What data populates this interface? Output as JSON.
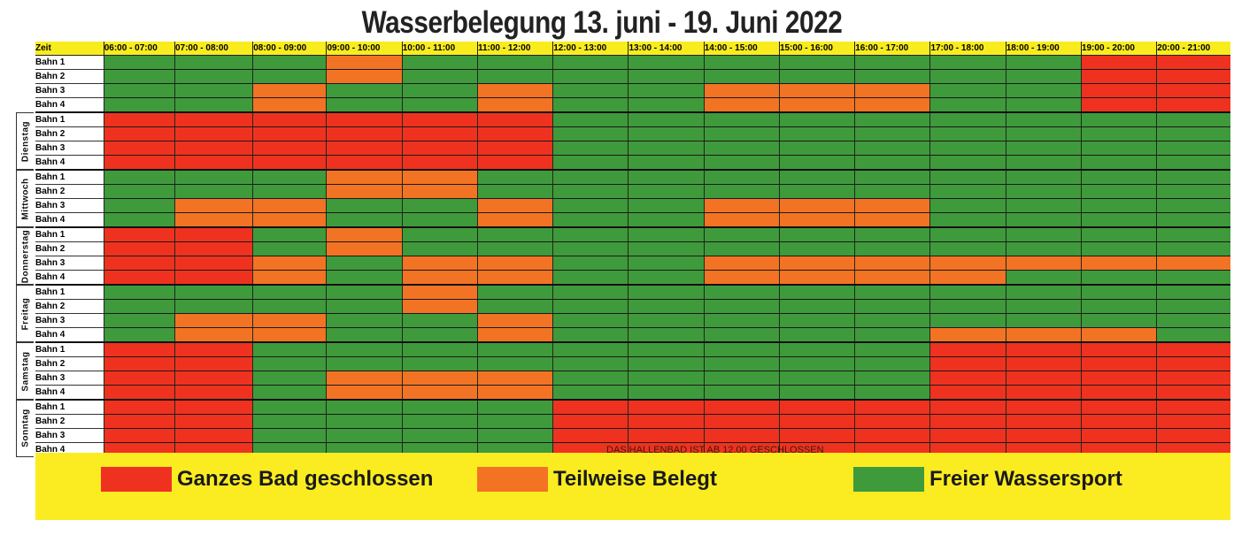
{
  "title": "Wasserbelegung 13. juni - 19. Juni 2022",
  "header": {
    "first_col": "Zeit",
    "slots": [
      "06:00 - 07:00",
      "07:00 - 08:00",
      "08:00 - 09:00",
      "09:00 - 10:00",
      "10:00 - 11:00",
      "11:00 - 12:00",
      "12:00 - 13:00",
      "13:00 - 14:00",
      "14:00 - 15:00",
      "15:00 - 16:00",
      "16:00 - 17:00",
      "17:00 - 18:00",
      "18:00 - 19:00",
      "19:00 - 20:00",
      "20:00 - 21:00"
    ]
  },
  "colors": {
    "R": "#ef3220",
    "O": "#f37324",
    "G": "#3f9a3c",
    "yellow": "#f8ec1e"
  },
  "days": [
    {
      "label": "",
      "lanes": [
        {
          "name": "Bahn 1",
          "cells": [
            "G",
            "G",
            "G",
            "O",
            "G",
            "G",
            "G",
            "G",
            "G",
            "G",
            "G",
            "G",
            "G",
            "R",
            "R"
          ]
        },
        {
          "name": "Bahn 2",
          "cells": [
            "G",
            "G",
            "G",
            "O",
            "G",
            "G",
            "G",
            "G",
            "G",
            "G",
            "G",
            "G",
            "G",
            "R",
            "R"
          ]
        },
        {
          "name": "Bahn 3",
          "cells": [
            "G",
            "G",
            "O",
            "G",
            "G",
            "O",
            "G",
            "G",
            "O",
            "O",
            "O",
            "G",
            "G",
            "R",
            "R"
          ]
        },
        {
          "name": "Bahn 4",
          "cells": [
            "G",
            "G",
            "O",
            "G",
            "G",
            "O",
            "G",
            "G",
            "O",
            "O",
            "O",
            "G",
            "G",
            "R",
            "R"
          ]
        }
      ]
    },
    {
      "label": "Dienstag",
      "lanes": [
        {
          "name": "Bahn 1",
          "cells": [
            "R",
            "R",
            "R",
            "R",
            "R",
            "R",
            "G",
            "G",
            "G",
            "G",
            "G",
            "G",
            "G",
            "G",
            "G"
          ]
        },
        {
          "name": "Bahn 2",
          "cells": [
            "R",
            "R",
            "R",
            "R",
            "R",
            "R",
            "G",
            "G",
            "G",
            "G",
            "G",
            "G",
            "G",
            "G",
            "G"
          ]
        },
        {
          "name": "Bahn 3",
          "cells": [
            "R",
            "R",
            "R",
            "R",
            "R",
            "R",
            "G",
            "G",
            "G",
            "G",
            "G",
            "G",
            "G",
            "G",
            "G"
          ]
        },
        {
          "name": "Bahn 4",
          "cells": [
            "R",
            "R",
            "R",
            "R",
            "R",
            "R",
            "G",
            "G",
            "G",
            "G",
            "G",
            "G",
            "G",
            "G",
            "G"
          ]
        }
      ]
    },
    {
      "label": "Mittwoch",
      "lanes": [
        {
          "name": "Bahn 1",
          "cells": [
            "G",
            "G",
            "G",
            "O",
            "O",
            "G",
            "G",
            "G",
            "G",
            "G",
            "G",
            "G",
            "G",
            "G",
            "G"
          ]
        },
        {
          "name": "Bahn 2",
          "cells": [
            "G",
            "G",
            "G",
            "O",
            "O",
            "G",
            "G",
            "G",
            "G",
            "G",
            "G",
            "G",
            "G",
            "G",
            "G"
          ]
        },
        {
          "name": "Bahn 3",
          "cells": [
            "G",
            "O",
            "O",
            "G",
            "G",
            "O",
            "G",
            "G",
            "O",
            "O",
            "O",
            "G",
            "G",
            "G",
            "G"
          ]
        },
        {
          "name": "Bahn 4",
          "cells": [
            "G",
            "O",
            "O",
            "G",
            "G",
            "O",
            "G",
            "G",
            "O",
            "O",
            "O",
            "G",
            "G",
            "G",
            "G"
          ]
        }
      ]
    },
    {
      "label": "Donnerstag",
      "lanes": [
        {
          "name": "Bahn 1",
          "cells": [
            "R",
            "R",
            "G",
            "O",
            "G",
            "G",
            "G",
            "G",
            "G",
            "G",
            "G",
            "G",
            "G",
            "G",
            "G"
          ]
        },
        {
          "name": "Bahn 2",
          "cells": [
            "R",
            "R",
            "G",
            "O",
            "G",
            "G",
            "G",
            "G",
            "G",
            "G",
            "G",
            "G",
            "G",
            "G",
            "G"
          ]
        },
        {
          "name": "Bahn 3",
          "cells": [
            "R",
            "R",
            "O",
            "G",
            "O",
            "O",
            "G",
            "G",
            "O",
            "O",
            "O",
            "O",
            "O",
            "O",
            "O"
          ]
        },
        {
          "name": "Bahn 4",
          "cells": [
            "R",
            "R",
            "O",
            "G",
            "O",
            "O",
            "G",
            "G",
            "O",
            "O",
            "O",
            "O",
            "G",
            "G",
            "G"
          ]
        }
      ]
    },
    {
      "label": "Freitag",
      "lanes": [
        {
          "name": "Bahn 1",
          "cells": [
            "G",
            "G",
            "G",
            "G",
            "O",
            "G",
            "G",
            "G",
            "G",
            "G",
            "G",
            "G",
            "G",
            "G",
            "G"
          ]
        },
        {
          "name": "Bahn 2",
          "cells": [
            "G",
            "G",
            "G",
            "G",
            "O",
            "G",
            "G",
            "G",
            "G",
            "G",
            "G",
            "G",
            "G",
            "G",
            "G"
          ]
        },
        {
          "name": "Bahn 3",
          "cells": [
            "G",
            "O",
            "O",
            "G",
            "G",
            "O",
            "G",
            "G",
            "G",
            "G",
            "G",
            "G",
            "G",
            "G",
            "G"
          ]
        },
        {
          "name": "Bahn 4",
          "cells": [
            "G",
            "O",
            "O",
            "G",
            "G",
            "O",
            "G",
            "G",
            "G",
            "G",
            "G",
            "O",
            "O",
            "O",
            "G"
          ]
        }
      ]
    },
    {
      "label": "Samstag",
      "lanes": [
        {
          "name": "Bahn 1",
          "cells": [
            "R",
            "R",
            "G",
            "G",
            "G",
            "G",
            "G",
            "G",
            "G",
            "G",
            "G",
            "R",
            "R",
            "R",
            "R"
          ]
        },
        {
          "name": "Bahn 2",
          "cells": [
            "R",
            "R",
            "G",
            "G",
            "G",
            "G",
            "G",
            "G",
            "G",
            "G",
            "G",
            "R",
            "R",
            "R",
            "R"
          ]
        },
        {
          "name": "Bahn 3",
          "cells": [
            "R",
            "R",
            "G",
            "O",
            "O",
            "O",
            "G",
            "G",
            "G",
            "G",
            "G",
            "R",
            "R",
            "R",
            "R"
          ]
        },
        {
          "name": "Bahn 4",
          "cells": [
            "R",
            "R",
            "G",
            "O",
            "O",
            "O",
            "G",
            "G",
            "G",
            "G",
            "G",
            "R",
            "R",
            "R",
            "R"
          ]
        }
      ]
    },
    {
      "label": "Sonntag",
      "lanes": [
        {
          "name": "Bahn 1",
          "cells": [
            "R",
            "R",
            "G",
            "G",
            "G",
            "G",
            "R",
            "R",
            "R",
            "R",
            "R",
            "R",
            "R",
            "R",
            "R"
          ]
        },
        {
          "name": "Bahn 2",
          "cells": [
            "R",
            "R",
            "G",
            "G",
            "G",
            "G",
            "R",
            "R",
            "R",
            "R",
            "R",
            "R",
            "R",
            "R",
            "R"
          ]
        },
        {
          "name": "Bahn 3",
          "cells": [
            "R",
            "R",
            "G",
            "G",
            "G",
            "G",
            "R",
            "R",
            "R",
            "R",
            "R",
            "R",
            "R",
            "R",
            "R"
          ]
        },
        {
          "name": "Bahn 4",
          "cells": [
            "R",
            "R",
            "G",
            "G",
            "G",
            "G",
            "R",
            "R",
            "R",
            "R",
            "R",
            "R",
            "R",
            "R",
            "R"
          ]
        }
      ]
    }
  ],
  "sunday_note": "DAS HALLENBAD IST AB 12.00 GESCHLOSSEN",
  "legend": [
    {
      "code": "R",
      "label": "Ganzes Bad geschlossen"
    },
    {
      "code": "O",
      "label": "Teilweise Belegt"
    },
    {
      "code": "G",
      "label": "Freier Wassersport"
    }
  ],
  "chart_data": {
    "type": "table",
    "title": "Wasserbelegung 13. juni - 19. Juni 2022",
    "columns": [
      "06:00 - 07:00",
      "07:00 - 08:00",
      "08:00 - 09:00",
      "09:00 - 10:00",
      "10:00 - 11:00",
      "11:00 - 12:00",
      "12:00 - 13:00",
      "13:00 - 14:00",
      "14:00 - 15:00",
      "15:00 - 16:00",
      "16:00 - 17:00",
      "17:00 - 18:00",
      "18:00 - 19:00",
      "19:00 - 20:00",
      "20:00 - 21:00"
    ],
    "legend": {
      "R": "Ganzes Bad geschlossen",
      "O": "Teilweise Belegt",
      "G": "Freier Wassersport"
    },
    "note": "Sonntag: DAS HALLENBAD IST AB 12.00 GESCHLOSSEN"
  }
}
